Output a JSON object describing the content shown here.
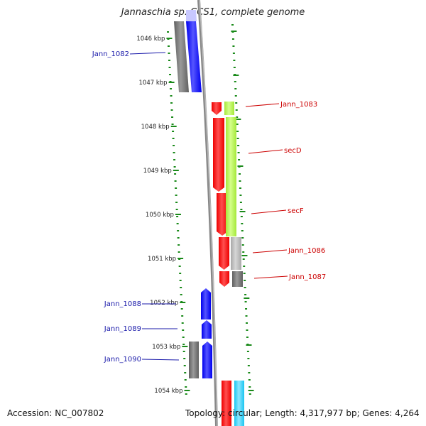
{
  "title": "Jannaschia sp. CCS1, complete genome",
  "footer": {
    "accession": "Accession: NC_007802",
    "summary": "Topology: circular; Length: 4,317,977 bp; Genes: 4,264"
  },
  "kbp_labels": [
    "1046 kbp",
    "1047 kbp",
    "1048 kbp",
    "1049 kbp",
    "1050 kbp",
    "1051 kbp",
    "1052 kbp",
    "1053 kbp",
    "1054 kbp"
  ],
  "gene_labels_left": [
    "Jann_1082",
    "Jann_1088",
    "Jann_1089",
    "Jann_1090"
  ],
  "gene_labels_right": [
    "Jann_1083",
    "secD",
    "secF",
    "Jann_1086",
    "Jann_1087"
  ],
  "colors": {
    "forward_gene": "#0000ee",
    "reverse_gene": "#ee0000",
    "cog_lime": "#a5e83a",
    "cog_gray": "#a8a8a8",
    "cog_dark": "#606060",
    "cog_cyan": "#19c6f0",
    "tick": "#1a8a1a",
    "backbone": "#888888",
    "left_label": "#1a1aaa",
    "right_label": "#cc0000"
  }
}
